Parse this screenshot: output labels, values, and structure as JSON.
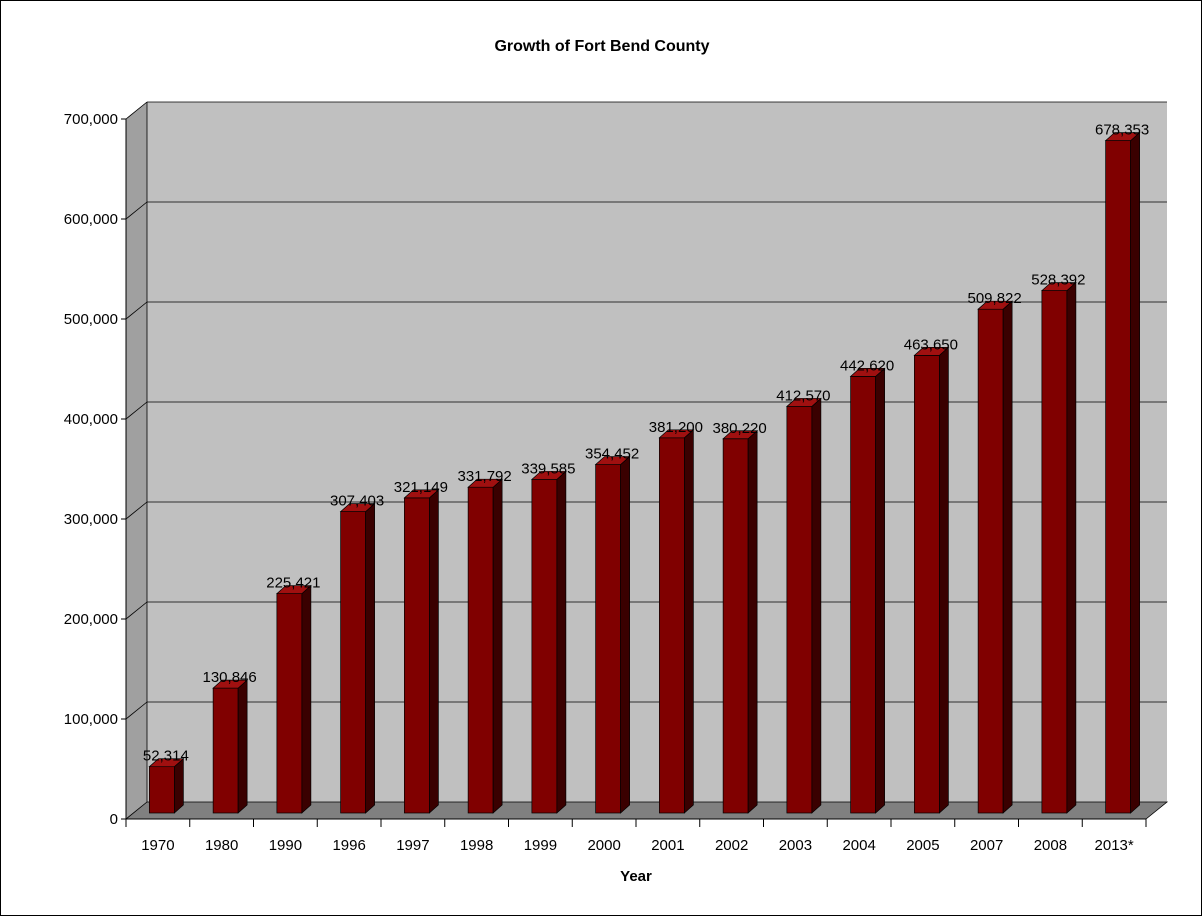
{
  "chart_data": {
    "type": "bar",
    "title": "Growth of Fort Bend County",
    "xlabel": "Year",
    "ylabel": "",
    "categories": [
      "1970",
      "1980",
      "1990",
      "1996",
      "1997",
      "1998",
      "1999",
      "2000",
      "2001",
      "2002",
      "2003",
      "2004",
      "2005",
      "2007",
      "2008",
      "2013*"
    ],
    "values": [
      52314,
      130846,
      225421,
      307403,
      321149,
      331792,
      339585,
      354452,
      381200,
      380220,
      412570,
      442620,
      463650,
      509822,
      528392,
      678353
    ],
    "value_labels": [
      "52,314",
      "130,846",
      "225,421",
      "307,403",
      "321,149",
      "331,792",
      "339,585",
      "354,452",
      "381,200",
      "380,220",
      "412,570",
      "442,620",
      "463,650",
      "509,822",
      "528,392",
      "678,353"
    ],
    "ylim": [
      0,
      700000
    ],
    "yticks": [
      0,
      100000,
      200000,
      300000,
      400000,
      500000,
      600000,
      700000
    ],
    "ytick_labels": [
      "0",
      "100,000",
      "200,000",
      "300,000",
      "400,000",
      "500,000",
      "600,000",
      "700,000"
    ],
    "grid": true,
    "legend": "none",
    "style": "3d-column"
  },
  "colors": {
    "bar_front": "#800000",
    "bar_top": "#A01010",
    "bar_side": "#3A0000",
    "back_wall": "#C0C0C0",
    "floor": "#808080",
    "gridline": "#000000"
  }
}
